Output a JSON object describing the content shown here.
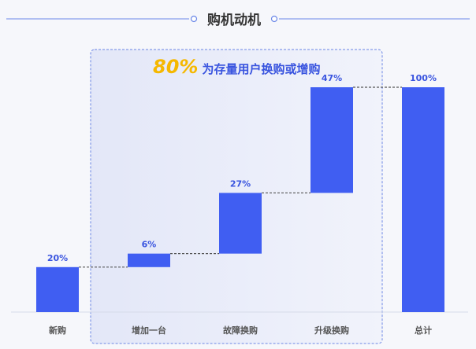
{
  "chart_data": {
    "type": "bar",
    "subtype": "waterfall",
    "title": "购机动机",
    "annotation": {
      "highlight": "80%",
      "text": "为存量用户换购或增购"
    },
    "categories": [
      "新购",
      "增加一台",
      "故障换购",
      "升级换购",
      "总计"
    ],
    "values": [
      20,
      6,
      27,
      47,
      100
    ],
    "data_labels": [
      "20%",
      "6%",
      "27%",
      "47%",
      "100%"
    ],
    "is_total": [
      false,
      false,
      false,
      false,
      true
    ],
    "ylim": [
      0,
      100
    ],
    "grid": false,
    "colors": {
      "bar": "#405ef2",
      "title": "#333333",
      "accent": "#f5b800",
      "title_line": "#6a87e8",
      "label": "#3954df",
      "category": "#555555",
      "highlight_fill": "#e6eaf9",
      "highlight_border": "#6b86e4",
      "connector": "#555555",
      "baseline": "#cfd4e3"
    }
  }
}
